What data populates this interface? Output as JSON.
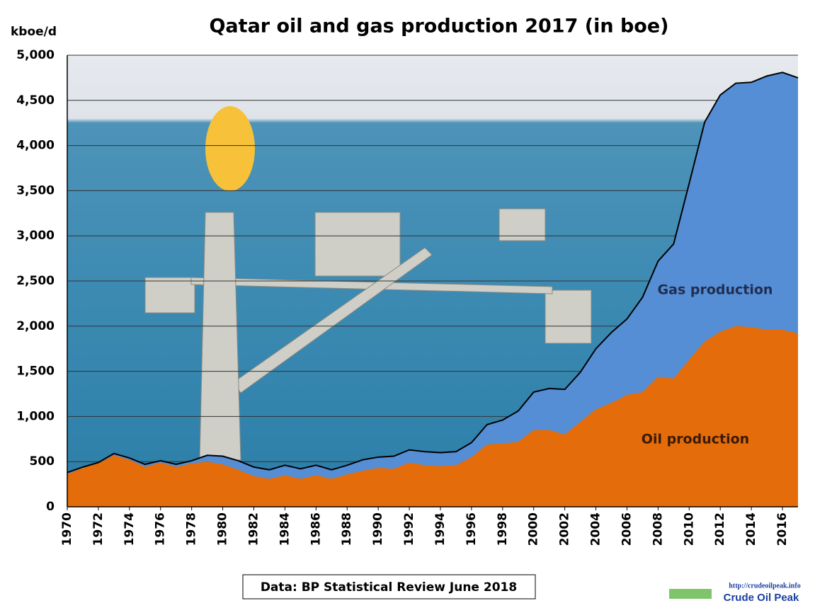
{
  "chart_data": {
    "type": "stacked_area",
    "title": "Qatar oil and gas production 2017 (in boe)",
    "y_label": "kboe/d",
    "x": [
      1970,
      1971,
      1972,
      1973,
      1974,
      1975,
      1976,
      1977,
      1978,
      1979,
      1980,
      1981,
      1982,
      1983,
      1984,
      1985,
      1986,
      1987,
      1988,
      1989,
      1990,
      1991,
      1992,
      1993,
      1994,
      1995,
      1996,
      1997,
      1998,
      1999,
      2000,
      2001,
      2002,
      2003,
      2004,
      2005,
      2006,
      2007,
      2008,
      2009,
      2010,
      2011,
      2012,
      2013,
      2014,
      2015,
      2016,
      2017
    ],
    "series": [
      {
        "name": "Oil production",
        "color": "#e46c0a",
        "values": [
          360,
          430,
          480,
          570,
          520,
          440,
          490,
          440,
          480,
          500,
          470,
          410,
          340,
          310,
          350,
          310,
          350,
          310,
          360,
          400,
          430,
          420,
          490,
          460,
          450,
          460,
          550,
          690,
          700,
          720,
          850,
          850,
          800,
          940,
          1080,
          1150,
          1240,
          1270,
          1440,
          1420,
          1630,
          1830,
          1940,
          2000,
          1990,
          1960,
          1960,
          1920
        ]
      },
      {
        "name": "Gas production",
        "color": "#558ed5",
        "values": [
          20,
          10,
          10,
          20,
          20,
          30,
          20,
          30,
          30,
          70,
          90,
          100,
          100,
          100,
          110,
          110,
          110,
          100,
          100,
          120,
          120,
          140,
          140,
          150,
          150,
          150,
          160,
          220,
          260,
          340,
          420,
          460,
          500,
          550,
          670,
          780,
          840,
          1050,
          1280,
          1490,
          1950,
          2430,
          2620,
          2690,
          2710,
          2810,
          2850,
          2830
        ]
      }
    ],
    "xlim": [
      1970,
      2017
    ],
    "xticks": [
      1970,
      1972,
      1974,
      1976,
      1978,
      1980,
      1982,
      1984,
      1986,
      1988,
      1990,
      1992,
      1994,
      1996,
      1998,
      2000,
      2002,
      2004,
      2006,
      2008,
      2010,
      2012,
      2014,
      2016
    ],
    "ylim": [
      0,
      5000
    ],
    "yticks": [
      0,
      500,
      {
        "value": 1000,
        "label": "1,000"
      },
      {
        "value": 1500,
        "label": "1,500"
      },
      {
        "value": 2000,
        "label": "2,000"
      },
      {
        "value": 2500,
        "label": "2,500"
      },
      {
        "value": 3000,
        "label": "3,000"
      },
      {
        "value": 3500,
        "label": "3,500"
      },
      {
        "value": 4000,
        "label": "4,000"
      },
      {
        "value": 4500,
        "label": "4,500"
      },
      {
        "value": 5000,
        "label": "5,000"
      }
    ],
    "grid": true,
    "source": "Data: BP Statistical Review June 2018",
    "logo_url": "http://crudeoilpeak.info",
    "logo_name": "Crude Oil Peak"
  }
}
